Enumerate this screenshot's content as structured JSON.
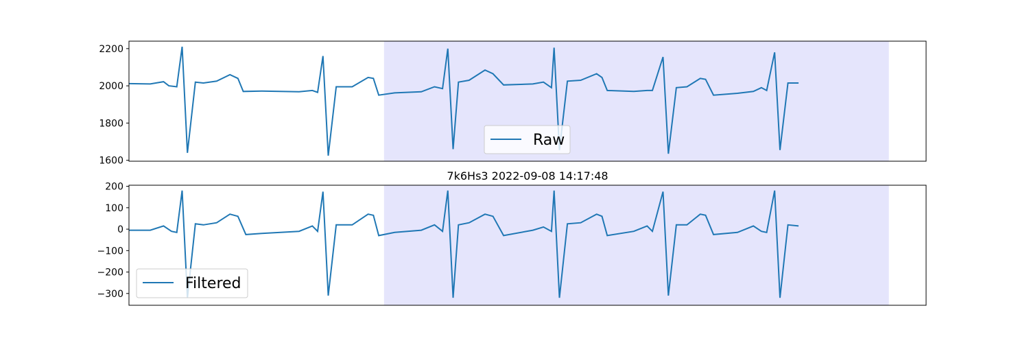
{
  "chart_data": [
    {
      "type": "line",
      "title": "",
      "xlabel": "",
      "ylabel": "",
      "ylim": [
        1595,
        2240
      ],
      "yticks": [
        1600,
        1800,
        2000,
        2200
      ],
      "xlim": [
        0,
        1500
      ],
      "highlight_span": [
        480,
        1430
      ],
      "legend": "bottom-center",
      "series": [
        {
          "name": "Raw",
          "color": "#1f77b4"
        }
      ],
      "baseline": [
        [
          0,
          2012
        ],
        [
          40,
          2010
        ],
        [
          65,
          2022
        ],
        [
          75,
          2000
        ],
        [
          90,
          1995
        ],
        [
          100,
          2210
        ],
        [
          110,
          1640
        ],
        [
          125,
          2020
        ],
        [
          140,
          2015
        ],
        [
          165,
          2025
        ],
        [
          190,
          2060
        ],
        [
          205,
          2040
        ],
        [
          215,
          1970
        ],
        [
          250,
          1972
        ],
        [
          320,
          1968
        ],
        [
          345,
          1975
        ],
        [
          355,
          1965
        ],
        [
          365,
          2160
        ],
        [
          375,
          1625
        ],
        [
          390,
          1995
        ],
        [
          420,
          1995
        ],
        [
          450,
          2045
        ],
        [
          460,
          2040
        ],
        [
          470,
          1950
        ],
        [
          500,
          1962
        ],
        [
          550,
          1968
        ],
        [
          575,
          1995
        ],
        [
          590,
          1985
        ],
        [
          600,
          2200
        ],
        [
          610,
          1660
        ],
        [
          620,
          2020
        ],
        [
          640,
          2030
        ],
        [
          670,
          2085
        ],
        [
          685,
          2065
        ],
        [
          705,
          2005
        ],
        [
          760,
          2010
        ],
        [
          780,
          2020
        ],
        [
          795,
          1990
        ],
        [
          800,
          2205
        ],
        [
          810,
          1655
        ],
        [
          825,
          2025
        ],
        [
          850,
          2030
        ],
        [
          880,
          2065
        ],
        [
          890,
          2045
        ],
        [
          900,
          1975
        ],
        [
          950,
          1970
        ],
        [
          975,
          1975
        ],
        [
          985,
          1975
        ],
        [
          1005,
          2155
        ],
        [
          1015,
          1635
        ],
        [
          1030,
          1990
        ],
        [
          1050,
          1995
        ],
        [
          1075,
          2040
        ],
        [
          1085,
          2035
        ],
        [
          1100,
          1950
        ],
        [
          1145,
          1960
        ],
        [
          1175,
          1970
        ],
        [
          1190,
          1990
        ],
        [
          1200,
          1975
        ],
        [
          1215,
          2180
        ],
        [
          1225,
          1655
        ],
        [
          1240,
          2015
        ],
        [
          1260,
          2015
        ]
      ],
      "peaks": [
        [
          100,
          2210,
          1640
        ],
        [
          365,
          2160,
          1625
        ],
        [
          600,
          2200,
          1660
        ],
        [
          800,
          2205,
          1655
        ],
        [
          1005,
          2155,
          1635
        ],
        [
          1215,
          2180,
          1655
        ]
      ]
    },
    {
      "type": "line",
      "title": "7k6Hs3 2022-09-08 14:17:48",
      "xlabel": "",
      "ylabel": "",
      "ylim": [
        -355,
        205
      ],
      "yticks": [
        200,
        100,
        0,
        -100,
        -200,
        -300
      ],
      "yticklabels": [
        "200",
        "100",
        "0",
        "−100",
        "−200",
        "−300"
      ],
      "xlim": [
        0,
        1500
      ],
      "highlight_span": [
        480,
        1430
      ],
      "legend": "lower-left",
      "series": [
        {
          "name": "Filtered",
          "color": "#1f77b4"
        }
      ],
      "baseline": [
        [
          0,
          -5
        ],
        [
          40,
          -5
        ],
        [
          65,
          15
        ],
        [
          80,
          -10
        ],
        [
          90,
          -15
        ],
        [
          100,
          180
        ],
        [
          110,
          -320
        ],
        [
          125,
          25
        ],
        [
          140,
          20
        ],
        [
          165,
          30
        ],
        [
          190,
          70
        ],
        [
          205,
          60
        ],
        [
          220,
          -25
        ],
        [
          250,
          -20
        ],
        [
          320,
          -10
        ],
        [
          345,
          15
        ],
        [
          355,
          -10
        ],
        [
          365,
          175
        ],
        [
          375,
          -310
        ],
        [
          390,
          20
        ],
        [
          420,
          20
        ],
        [
          450,
          70
        ],
        [
          460,
          65
        ],
        [
          470,
          -30
        ],
        [
          500,
          -15
        ],
        [
          550,
          -5
        ],
        [
          575,
          20
        ],
        [
          590,
          -10
        ],
        [
          600,
          180
        ],
        [
          610,
          -320
        ],
        [
          620,
          20
        ],
        [
          640,
          30
        ],
        [
          670,
          70
        ],
        [
          685,
          60
        ],
        [
          705,
          -30
        ],
        [
          760,
          -5
        ],
        [
          780,
          10
        ],
        [
          795,
          -10
        ],
        [
          800,
          180
        ],
        [
          810,
          -320
        ],
        [
          825,
          25
        ],
        [
          850,
          30
        ],
        [
          880,
          70
        ],
        [
          890,
          60
        ],
        [
          900,
          -30
        ],
        [
          950,
          -10
        ],
        [
          975,
          15
        ],
        [
          985,
          -10
        ],
        [
          1005,
          175
        ],
        [
          1015,
          -310
        ],
        [
          1030,
          20
        ],
        [
          1050,
          20
        ],
        [
          1075,
          70
        ],
        [
          1085,
          65
        ],
        [
          1100,
          -25
        ],
        [
          1145,
          -15
        ],
        [
          1175,
          15
        ],
        [
          1190,
          -10
        ],
        [
          1200,
          -15
        ],
        [
          1215,
          180
        ],
        [
          1225,
          -320
        ],
        [
          1240,
          20
        ],
        [
          1260,
          15
        ]
      ]
    }
  ]
}
